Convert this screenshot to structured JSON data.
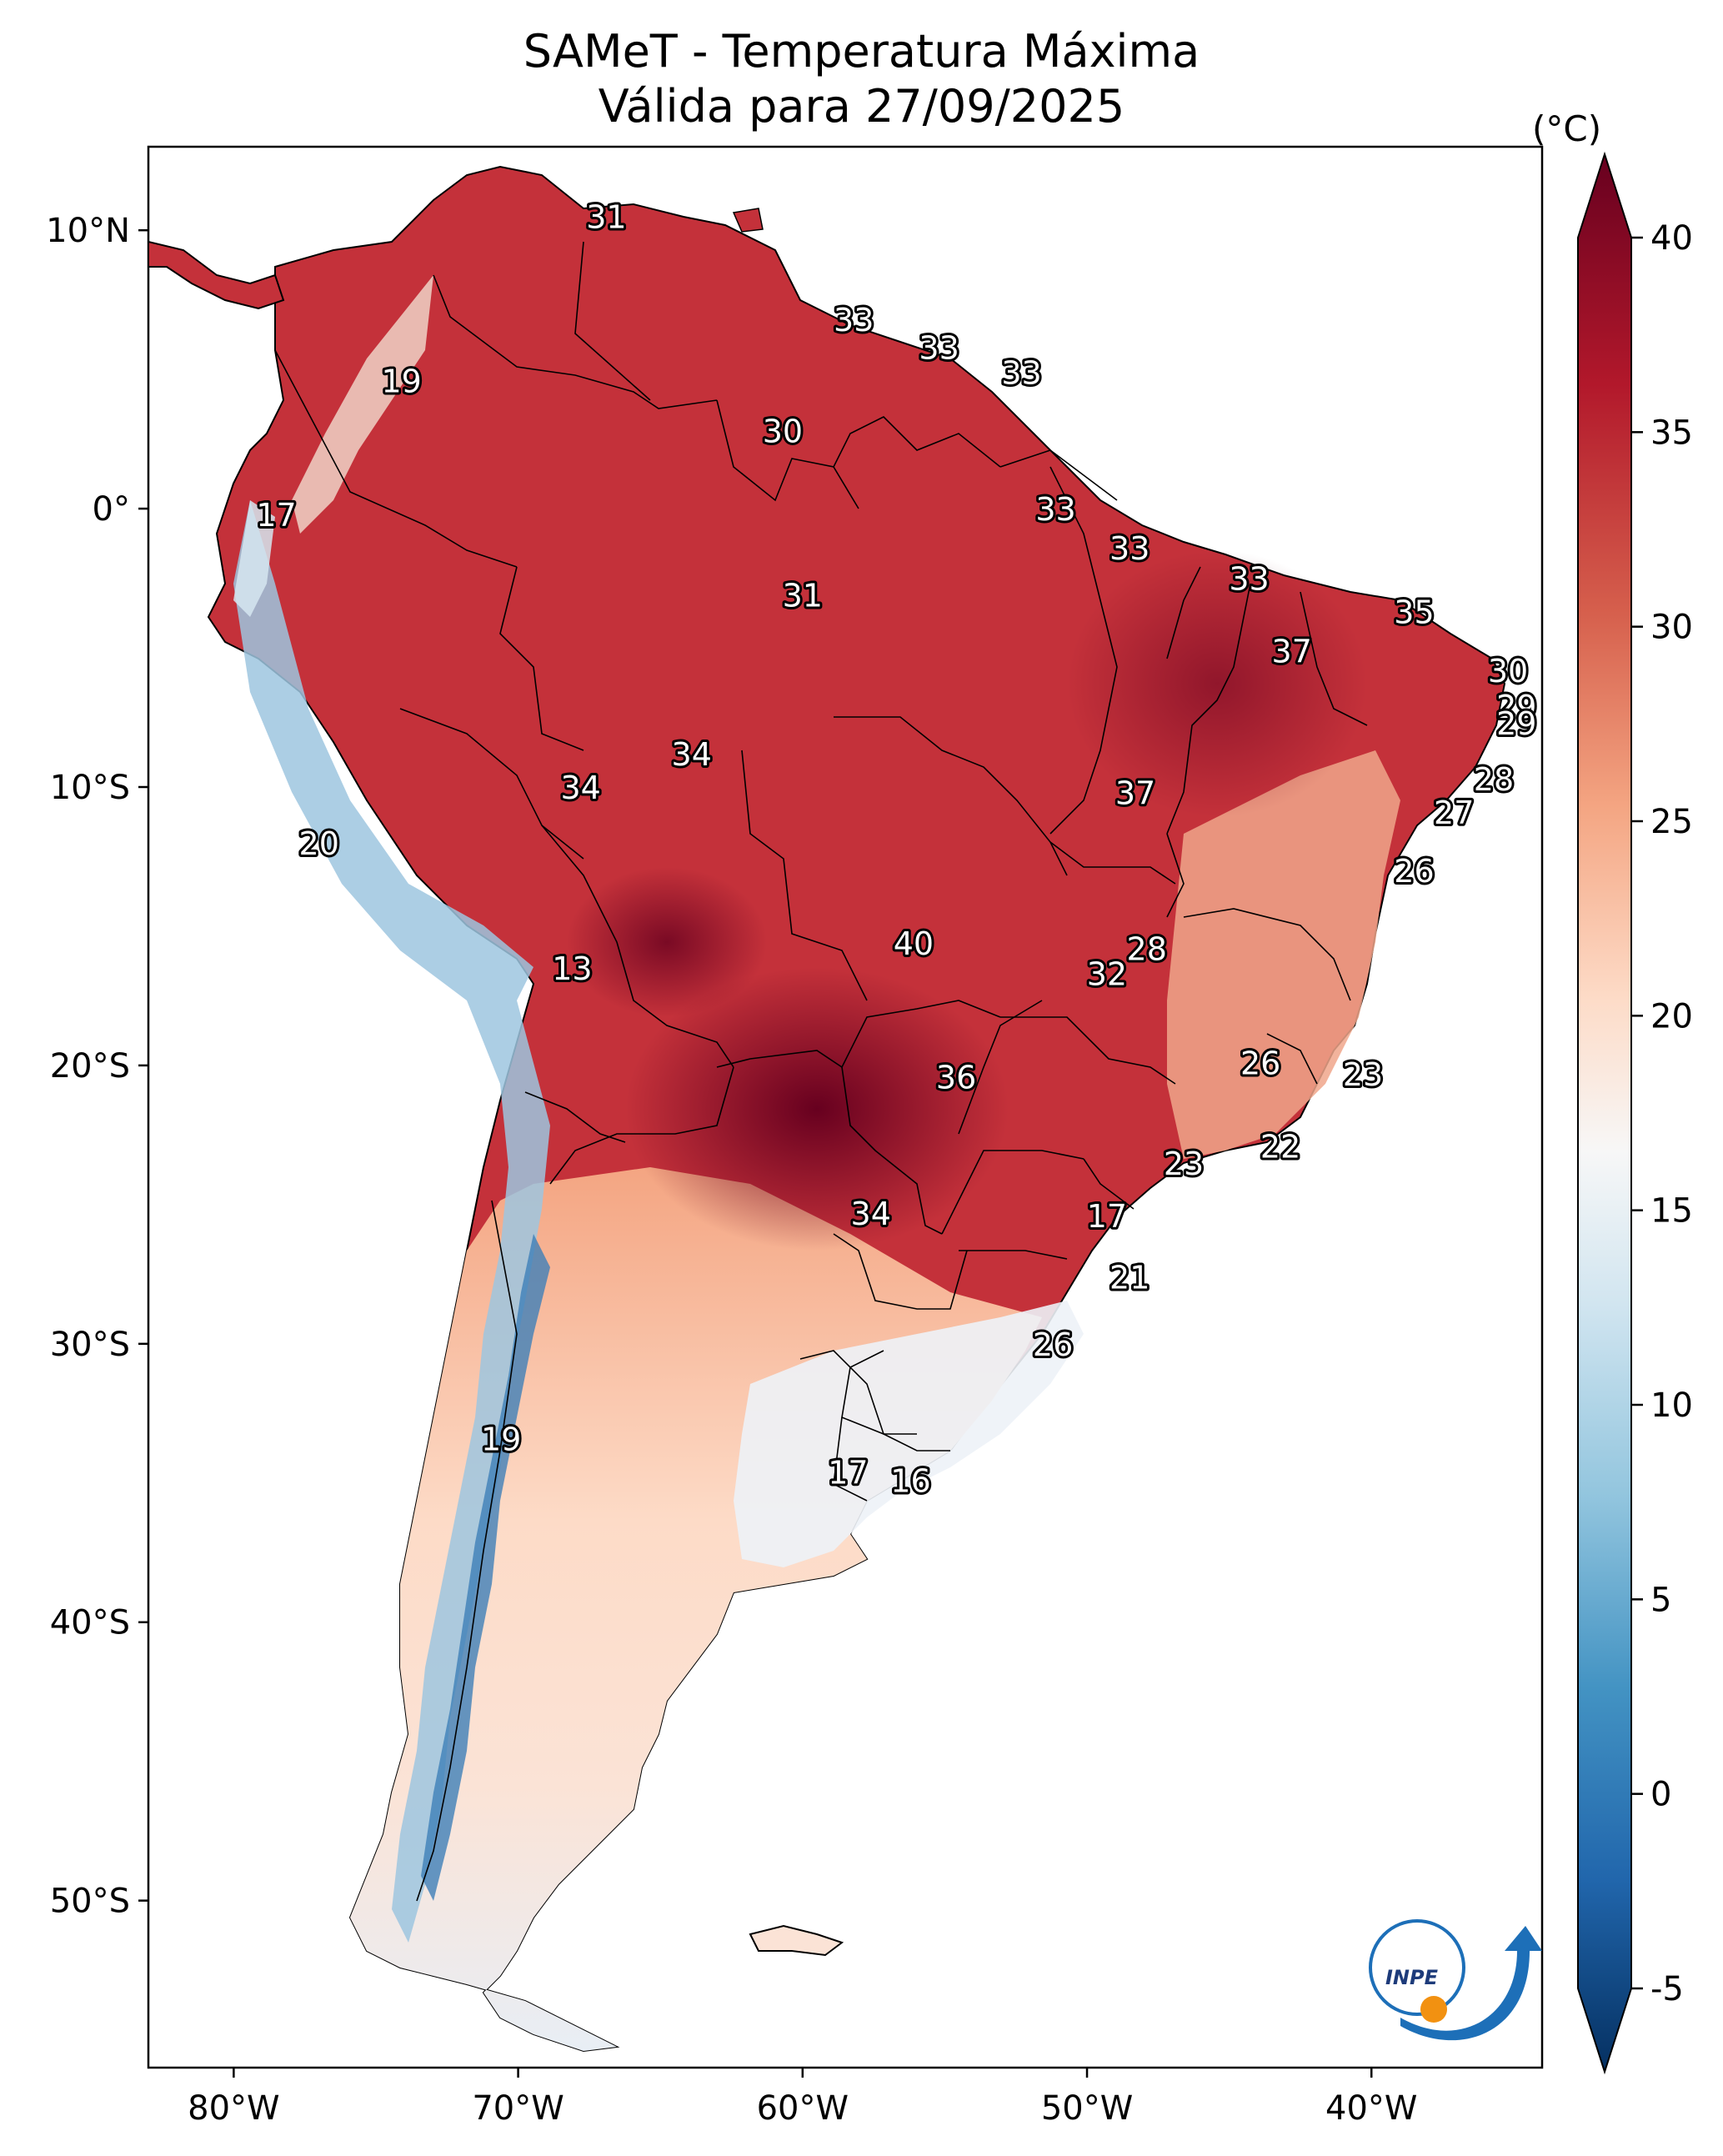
{
  "title": "SAMeT - Temperatura Máxima",
  "subtitle": "Válida para 27/09/2025",
  "colorbar": {
    "unit": "(°C)",
    "min": -5,
    "max": 40,
    "ticks": [
      "40",
      "35",
      "30",
      "25",
      "20",
      "15",
      "10",
      "5",
      "0",
      "-5"
    ],
    "colors": [
      "#053061",
      "#2166ac",
      "#4393c3",
      "#92c5de",
      "#d1e5f0",
      "#f7f7f7",
      "#fddbc7",
      "#f4a582",
      "#d6604d",
      "#b2182b",
      "#67001f"
    ]
  },
  "axes": {
    "lat_labels": [
      "10°N",
      "0°",
      "10°S",
      "20°S",
      "30°S",
      "40°S",
      "50°S"
    ],
    "lon_labels": [
      "80°W",
      "70°W",
      "60°W",
      "50°W",
      "40°W"
    ],
    "lon_range": [
      -83,
      -34
    ],
    "lat_range": [
      -56,
      13
    ]
  },
  "city_labels": [
    {
      "t": "31",
      "lon": -66.9,
      "lat": 10.5
    },
    {
      "t": "19",
      "lon": -74.1,
      "lat": 4.6
    },
    {
      "t": "17",
      "lon": -78.5,
      "lat": -0.2
    },
    {
      "t": "33",
      "lon": -55.2,
      "lat": 5.8
    },
    {
      "t": "33",
      "lon": -58.2,
      "lat": 6.8
    },
    {
      "t": "33",
      "lon": -52.3,
      "lat": 4.9
    },
    {
      "t": "30",
      "lon": -60.7,
      "lat": 2.8
    },
    {
      "t": "33",
      "lon": -51.1,
      "lat": 0.0
    },
    {
      "t": "33",
      "lon": -48.5,
      "lat": -1.4
    },
    {
      "t": "31",
      "lon": -60.0,
      "lat": -3.1
    },
    {
      "t": "33",
      "lon": -44.3,
      "lat": -2.5
    },
    {
      "t": "35",
      "lon": -38.5,
      "lat": -3.7
    },
    {
      "t": "37",
      "lon": -42.8,
      "lat": -5.1
    },
    {
      "t": "30",
      "lon": -35.2,
      "lat": -5.8
    },
    {
      "t": "29",
      "lon": -34.9,
      "lat": -7.1
    },
    {
      "t": "29",
      "lon": -34.9,
      "lat": -7.7
    },
    {
      "t": "28",
      "lon": -35.7,
      "lat": -9.7
    },
    {
      "t": "27",
      "lon": -37.1,
      "lat": -10.9
    },
    {
      "t": "26",
      "lon": -38.5,
      "lat": -13.0
    },
    {
      "t": "34",
      "lon": -63.9,
      "lat": -8.8
    },
    {
      "t": "34",
      "lon": -67.8,
      "lat": -10.0
    },
    {
      "t": "37",
      "lon": -48.3,
      "lat": -10.2
    },
    {
      "t": "20",
      "lon": -77.0,
      "lat": -12.0
    },
    {
      "t": "13",
      "lon": -68.1,
      "lat": -16.5
    },
    {
      "t": "40",
      "lon": -56.1,
      "lat": -15.6
    },
    {
      "t": "28",
      "lon": -47.9,
      "lat": -15.8
    },
    {
      "t": "32",
      "lon": -49.3,
      "lat": -16.7
    },
    {
      "t": "26",
      "lon": -43.9,
      "lat": -19.9
    },
    {
      "t": "23",
      "lon": -40.3,
      "lat": -20.3
    },
    {
      "t": "36",
      "lon": -54.6,
      "lat": -20.4
    },
    {
      "t": "22",
      "lon": -43.2,
      "lat": -22.9
    },
    {
      "t": "23",
      "lon": -46.6,
      "lat": -23.5
    },
    {
      "t": "34",
      "lon": -57.6,
      "lat": -25.3
    },
    {
      "t": "17",
      "lon": -49.3,
      "lat": -25.4
    },
    {
      "t": "21",
      "lon": -48.5,
      "lat": -27.6
    },
    {
      "t": "26",
      "lon": -51.2,
      "lat": -30.0
    },
    {
      "t": "19",
      "lon": -70.6,
      "lat": -33.4
    },
    {
      "t": "17",
      "lon": -58.4,
      "lat": -34.6
    },
    {
      "t": "16",
      "lon": -56.2,
      "lat": -34.9
    }
  ],
  "logo": {
    "text": "INPE"
  }
}
